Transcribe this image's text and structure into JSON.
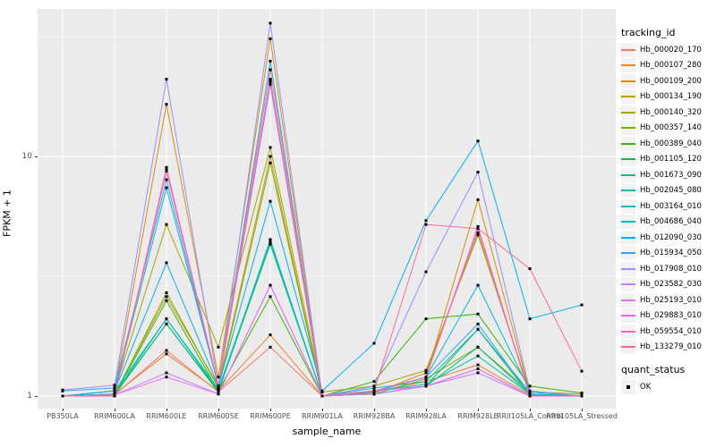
{
  "figure": {
    "ylabel": "FPKM + 1",
    "xlabel": "sample_name"
  },
  "style": {
    "panel_bg": "#EBEBEB",
    "grid_color": "#FFFFFF",
    "tick_text_color": "#4D4D4D",
    "legend_key_bg": "#F2F2F2",
    "marker_color": "#000000"
  },
  "chart_data": {
    "type": "line",
    "title": "",
    "xlabel": "sample_name",
    "ylabel": "FPKM + 1",
    "y_scale": "log10",
    "ylim": [
      0.9,
      41
    ],
    "y_ticks": [
      {
        "label": "1",
        "value": 1
      },
      {
        "label": "10",
        "value": 10
      }
    ],
    "y_major_gridlines": [
      1,
      10
    ],
    "y_minor_gridlines": [
      3.162,
      31.62
    ],
    "grid": true,
    "legend_position": "right",
    "x_categories": [
      "PB350LA",
      "RRIM600LA",
      "RRIM600LE",
      "RRIM600SE",
      "RRIM600PE",
      "RRIM901LA",
      "RRIM928BA",
      "RRIM928LA",
      "RRIM928LE",
      "RRII105LA_Control",
      "RRII105LA_Stressed"
    ],
    "legend": {
      "title": "tracking_id"
    },
    "quant_legend": {
      "title": "quant_status",
      "items": [
        {
          "label": "OK",
          "marker": "black-square"
        }
      ]
    },
    "series": [
      {
        "name": "Hb_000020_170",
        "color": "#F8766D",
        "values": [
          1.0,
          1.01,
          1.55,
          1.04,
          1.6,
          1.0,
          1.02,
          1.1,
          1.3,
          1.0,
          1.0
        ]
      },
      {
        "name": "Hb_000107_280",
        "color": "#EA8331",
        "values": [
          1.0,
          1.02,
          1.5,
          1.05,
          1.8,
          1.0,
          1.04,
          1.15,
          1.35,
          1.01,
          1.0
        ]
      },
      {
        "name": "Hb_000109_200",
        "color": "#D89000",
        "values": [
          1.0,
          1.05,
          16.5,
          1.2,
          31.0,
          1.0,
          1.05,
          1.2,
          6.6,
          1.04,
          1.0
        ]
      },
      {
        "name": "Hb_000134_190",
        "color": "#C09B00",
        "values": [
          1.0,
          1.02,
          2.6,
          1.1,
          10.0,
          1.0,
          1.03,
          1.25,
          4.8,
          1.02,
          1.0
        ]
      },
      {
        "name": "Hb_000140_320",
        "color": "#A3A500",
        "values": [
          1.0,
          1.05,
          5.2,
          1.6,
          10.9,
          1.04,
          1.1,
          1.28,
          4.7,
          1.04,
          1.02
        ]
      },
      {
        "name": "Hb_000357_140",
        "color": "#7CAE00",
        "values": [
          1.0,
          1.01,
          2.7,
          1.08,
          9.4,
          1.0,
          1.02,
          1.18,
          1.6,
          1.04,
          1.0
        ]
      },
      {
        "name": "Hb_000389_040",
        "color": "#39B600",
        "values": [
          1.0,
          1.01,
          2.5,
          1.05,
          2.6,
          1.0,
          1.15,
          2.1,
          2.2,
          1.1,
          1.03
        ]
      },
      {
        "name": "Hb_001105_120",
        "color": "#00BB4E",
        "values": [
          1.0,
          1.01,
          2.0,
          1.04,
          4.4,
          1.0,
          1.02,
          1.1,
          1.9,
          1.01,
          1.0
        ]
      },
      {
        "name": "Hb_001673_090",
        "color": "#00BF7D",
        "values": [
          1.0,
          1.02,
          2.0,
          1.05,
          4.3,
          1.0,
          1.05,
          1.1,
          1.6,
          1.02,
          1.0
        ]
      },
      {
        "name": "Hb_002045_080",
        "color": "#00C1A3",
        "values": [
          1.0,
          1.02,
          2.1,
          1.05,
          4.5,
          1.0,
          1.05,
          1.12,
          1.47,
          1.02,
          1.0
        ]
      },
      {
        "name": "Hb_003164_010",
        "color": "#00BFC4",
        "values": [
          1.0,
          1.05,
          2.1,
          1.07,
          4.4,
          1.0,
          1.08,
          1.15,
          1.9,
          1.04,
          1.0
        ]
      },
      {
        "name": "Hb_004686_040",
        "color": "#00BAE0",
        "values": [
          1.0,
          1.05,
          7.4,
          1.1,
          25.0,
          1.0,
          1.05,
          1.2,
          2.9,
          1.05,
          1.0
        ]
      },
      {
        "name": "Hb_012090_030",
        "color": "#00B0F6",
        "values": [
          1.0,
          1.05,
          3.6,
          1.1,
          6.5,
          1.05,
          1.66,
          5.4,
          11.6,
          2.1,
          2.4
        ]
      },
      {
        "name": "Hb_015934_050",
        "color": "#35A2FF",
        "values": [
          1.05,
          1.08,
          8.0,
          1.1,
          20.0,
          1.0,
          1.04,
          1.2,
          2.0,
          1.01,
          1.0
        ]
      },
      {
        "name": "Hb_017908_010",
        "color": "#9590FF",
        "values": [
          1.06,
          1.11,
          21.0,
          1.1,
          36.0,
          1.0,
          1.1,
          3.3,
          8.6,
          1.05,
          1.0
        ]
      },
      {
        "name": "Hb_023582_030",
        "color": "#C77CFF",
        "values": [
          1.0,
          1.01,
          1.25,
          1.02,
          2.9,
          1.0,
          1.02,
          1.1,
          1.25,
          1.0,
          1.0
        ]
      },
      {
        "name": "Hb_025193_010",
        "color": "#E76BF3",
        "values": [
          1.0,
          1.01,
          1.2,
          1.02,
          2.9,
          1.0,
          1.05,
          1.1,
          1.3,
          1.0,
          1.0
        ]
      },
      {
        "name": "Hb_029883_010",
        "color": "#FA62DB",
        "values": [
          1.0,
          1.0,
          8.9,
          1.1,
          21.0,
          1.0,
          1.05,
          1.2,
          5.0,
          1.0,
          1.0
        ]
      },
      {
        "name": "Hb_059554_010",
        "color": "#FF62BC",
        "values": [
          1.0,
          1.0,
          8.7,
          1.1,
          20.5,
          1.0,
          1.05,
          1.2,
          5.1,
          1.0,
          1.0
        ]
      },
      {
        "name": "Hb_133279_010",
        "color": "#FF6A98",
        "values": [
          1.0,
          1.0,
          9.0,
          1.1,
          23.0,
          1.0,
          1.05,
          5.2,
          5.0,
          3.4,
          1.27
        ]
      }
    ]
  }
}
